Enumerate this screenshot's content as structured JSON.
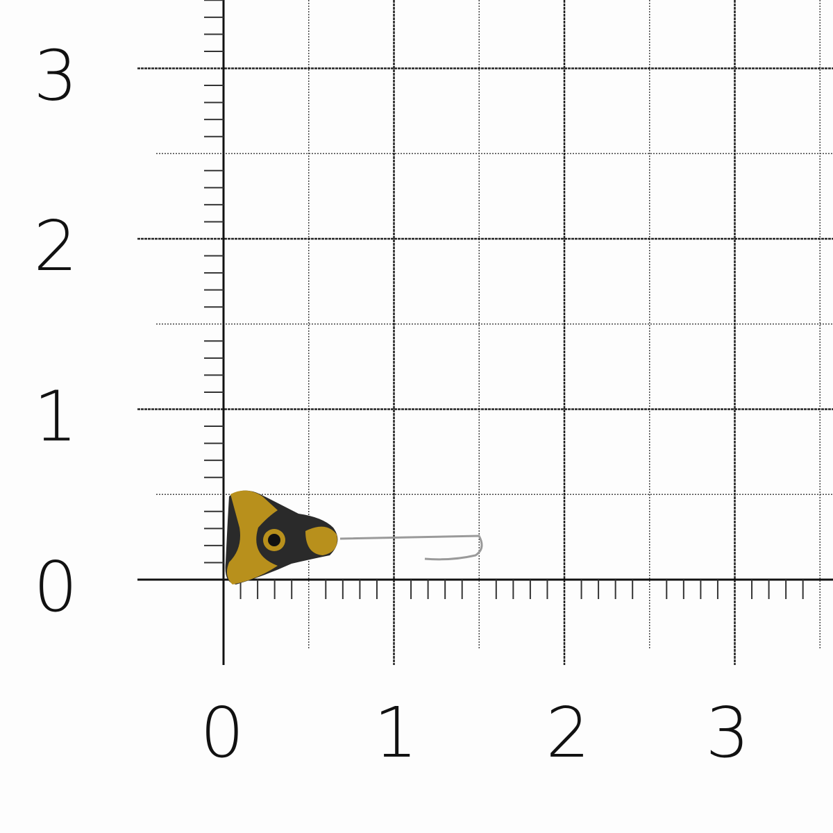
{
  "scale": {
    "unit_step": 1,
    "minor_step": 0.1,
    "half_step": 0.5,
    "x_labels": [
      "0",
      "1",
      "2",
      "3"
    ],
    "y_labels": [
      "0",
      "1",
      "2",
      "3"
    ]
  },
  "subject": {
    "name": "fishing-jig",
    "colors": {
      "gold": "#b8901c",
      "dark": "#2a2a2a",
      "wire": "#9a9a9a"
    }
  }
}
